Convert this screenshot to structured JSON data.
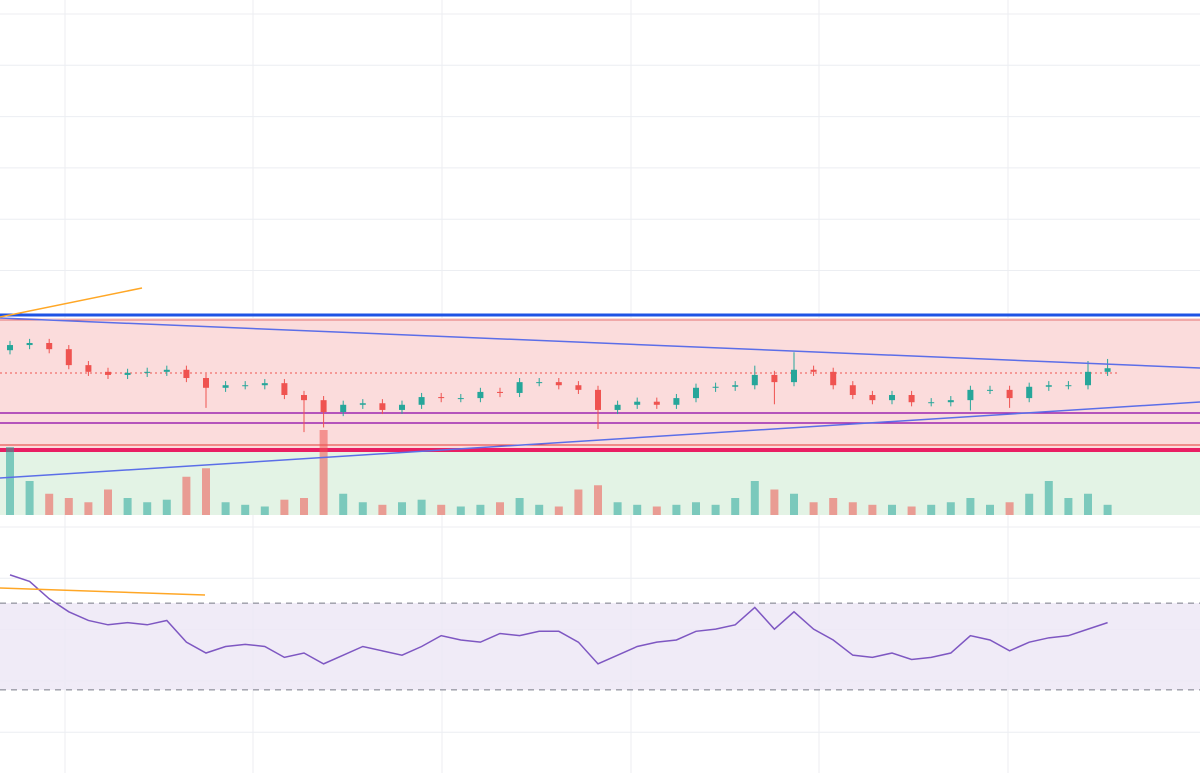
{
  "chart_data": [
    {
      "type": "candlestick",
      "up_color": "#26a69a",
      "down_color": "#ef5350",
      "grid": true,
      "ylim": [
        0,
        100
      ],
      "volume_ylim": [
        0,
        100
      ],
      "open": [
        32.0,
        33.0,
        33.4,
        32.2,
        29.1,
        27.8,
        27.2,
        27.6,
        27.8,
        28.2,
        26.6,
        24.7,
        25.2,
        25.2,
        25.6,
        23.3,
        22.3,
        20.0,
        21.4,
        21.7,
        20.4,
        21.4,
        22.9,
        22.7,
        22.7,
        23.9,
        23.7,
        25.8,
        25.8,
        25.2,
        24.3,
        20.4,
        21.4,
        22.0,
        21.4,
        22.7,
        24.7,
        24.9,
        25.2,
        27.2,
        25.8,
        28.2,
        27.8,
        25.2,
        23.3,
        22.3,
        23.3,
        21.9,
        21.9,
        22.3,
        24.3,
        24.3,
        22.7,
        24.9,
        25.2,
        25.2,
        27.8
      ],
      "high": [
        33.8,
        34.2,
        34.2,
        33.0,
        29.9,
        28.6,
        28.4,
        28.6,
        29.0,
        29.0,
        27.4,
        26.0,
        26.0,
        26.4,
        26.4,
        24.1,
        23.1,
        22.2,
        22.5,
        22.5,
        22.2,
        23.7,
        23.7,
        23.5,
        24.7,
        24.7,
        26.6,
        26.6,
        26.6,
        26.0,
        25.1,
        22.2,
        22.8,
        22.8,
        23.5,
        25.5,
        25.7,
        26.0,
        29.0,
        28.0,
        31.6,
        29.0,
        28.6,
        26.0,
        24.1,
        24.1,
        24.1,
        22.7,
        23.1,
        25.1,
        25.1,
        25.1,
        25.7,
        26.0,
        26.0,
        29.9,
        30.3
      ],
      "low": [
        31.2,
        32.2,
        31.4,
        28.3,
        27.0,
        26.4,
        26.4,
        26.8,
        27.0,
        25.8,
        20.8,
        23.9,
        24.4,
        24.4,
        22.5,
        16.1,
        17.0,
        19.2,
        20.6,
        19.6,
        19.6,
        20.6,
        21.9,
        21.9,
        21.9,
        22.9,
        22.9,
        25.0,
        24.4,
        23.5,
        16.7,
        19.6,
        20.6,
        20.6,
        20.6,
        21.9,
        23.9,
        24.1,
        24.4,
        21.5,
        25.0,
        27.0,
        24.4,
        22.5,
        21.5,
        21.5,
        21.1,
        21.1,
        21.1,
        20.3,
        23.5,
        20.8,
        21.9,
        24.1,
        24.4,
        24.4,
        27.0
      ],
      "close": [
        33.0,
        33.4,
        32.2,
        29.1,
        27.8,
        27.2,
        27.6,
        27.8,
        28.2,
        26.6,
        24.7,
        25.2,
        25.2,
        25.6,
        23.3,
        22.3,
        20.0,
        21.4,
        21.7,
        20.4,
        21.4,
        22.9,
        22.7,
        22.7,
        23.9,
        23.7,
        25.8,
        25.8,
        25.2,
        24.3,
        20.4,
        21.4,
        22.0,
        21.4,
        22.7,
        24.7,
        24.9,
        25.2,
        27.2,
        25.8,
        28.2,
        27.8,
        25.2,
        23.3,
        22.3,
        23.3,
        21.9,
        21.9,
        22.3,
        24.3,
        24.3,
        22.7,
        24.9,
        25.2,
        25.2,
        27.8,
        28.5
      ],
      "volume": [
        80,
        40,
        25,
        20,
        15,
        30,
        20,
        15,
        18,
        45,
        55,
        15,
        12,
        10,
        18,
        20,
        100,
        25,
        15,
        12,
        15,
        18,
        12,
        10,
        12,
        15,
        20,
        12,
        10,
        30,
        35,
        15,
        12,
        10,
        12,
        15,
        12,
        20,
        40,
        30,
        25,
        15,
        20,
        15,
        12,
        12,
        10,
        12,
        15,
        20,
        12,
        15,
        25,
        40,
        20,
        25,
        12
      ]
    },
    {
      "type": "line",
      "color": "#7e57c2",
      "ylim": [
        0,
        100
      ],
      "bands": [
        30,
        70
      ],
      "values": [
        83,
        80,
        72,
        66,
        62,
        60,
        61,
        60,
        62,
        52,
        47,
        50,
        51,
        50,
        45,
        47,
        42,
        46,
        50,
        48,
        46,
        50,
        55,
        53,
        52,
        56,
        55,
        57,
        57,
        52,
        42,
        46,
        50,
        52,
        53,
        57,
        58,
        60,
        68,
        58,
        66,
        58,
        53,
        46,
        45,
        47,
        44,
        45,
        47,
        55,
        53,
        48,
        52,
        54,
        55,
        58,
        61
      ]
    }
  ]
}
